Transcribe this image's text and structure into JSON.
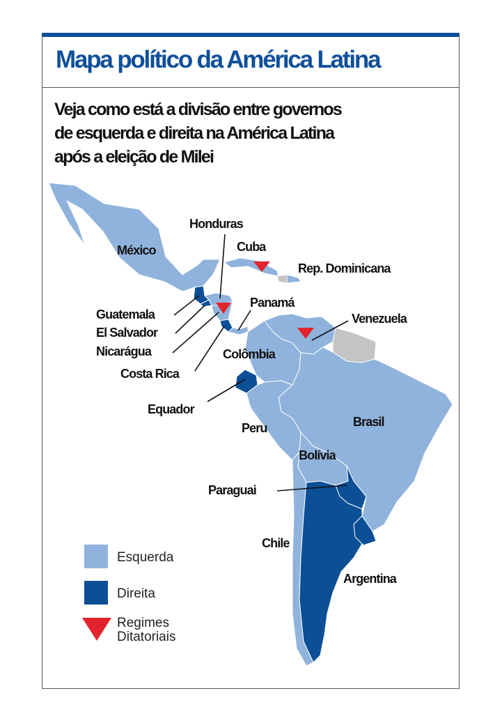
{
  "header": {
    "title": "Mapa político da América Latina",
    "subtitle_lines": [
      "Veja como está a divisão entre governos",
      "de esquerda e direita na América Latina",
      "após a eleição de Milei"
    ]
  },
  "colors": {
    "esquerda": "#8fb3dc",
    "direita": "#0b4f96",
    "regime": "#e3232b",
    "other": "#c4c4c4",
    "title": "#0f4f9a"
  },
  "countries": {
    "mexico": {
      "label": "México",
      "category": "esquerda"
    },
    "honduras": {
      "label": "Honduras",
      "category": "esquerda"
    },
    "cuba": {
      "label": "Cuba",
      "category": "esquerda",
      "regime": true
    },
    "rep_dominicana": {
      "label": "Rep. Dominicana",
      "category": "esquerda"
    },
    "guatemala": {
      "label": "Guatemala",
      "category": "direita"
    },
    "el_salvador": {
      "label": "El Salvador",
      "category": "direita"
    },
    "nicaragua": {
      "label": "Nicarágua",
      "category": "esquerda",
      "regime": true
    },
    "costa_rica": {
      "label": "Costa Rica",
      "category": "direita"
    },
    "panama": {
      "label": "Panamá",
      "category": "esquerda"
    },
    "venezuela": {
      "label": "Venezuela",
      "category": "esquerda",
      "regime": true
    },
    "colombia": {
      "label": "Colômbia",
      "category": "esquerda"
    },
    "equador": {
      "label": "Equador",
      "category": "direita"
    },
    "peru": {
      "label": "Peru",
      "category": "esquerda"
    },
    "brasil": {
      "label": "Brasil",
      "category": "esquerda"
    },
    "bolivia": {
      "label": "Bolívia",
      "category": "esquerda"
    },
    "paraguai": {
      "label": "Paraguai",
      "category": "direita"
    },
    "chile": {
      "label": "Chile",
      "category": "esquerda"
    },
    "argentina": {
      "label": "Argentina",
      "category": "direita"
    }
  },
  "legend": {
    "esquerda": "Esquerda",
    "direita": "Direita",
    "regimes_line1": "Regimes",
    "regimes_line2": "Ditatoriais"
  }
}
